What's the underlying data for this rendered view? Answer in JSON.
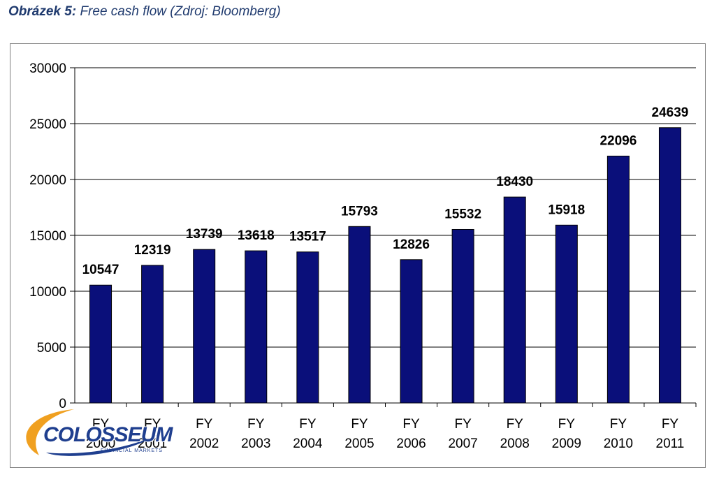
{
  "caption": {
    "label": "Obrázek 5:",
    "text": "Free cash flow (Zdroj: Bloomberg)"
  },
  "chart_data": {
    "type": "bar",
    "categories": [
      "FY 2000",
      "FY 2001",
      "FY 2002",
      "FY 2003",
      "FY 2004",
      "FY 2005",
      "FY 2006",
      "FY 2007",
      "FY 2008",
      "FY 2009",
      "FY 2010",
      "FY 2011"
    ],
    "values": [
      10547,
      12319,
      13739,
      13618,
      13517,
      15793,
      12826,
      15532,
      18430,
      15918,
      22096,
      24639
    ],
    "title": "",
    "xlabel": "",
    "ylabel": "",
    "ylim": [
      0,
      30000
    ],
    "yticks": [
      0,
      5000,
      10000,
      15000,
      20000,
      25000,
      30000
    ],
    "grid": true,
    "legend": "none",
    "bar_color": "#0a0f7a",
    "data_labels": true
  },
  "watermark": {
    "brand": "COLOSSEUM",
    "tagline": "FINANCIAL MARKETS",
    "color": "#1f3f8f",
    "accent": "#f0a020"
  }
}
